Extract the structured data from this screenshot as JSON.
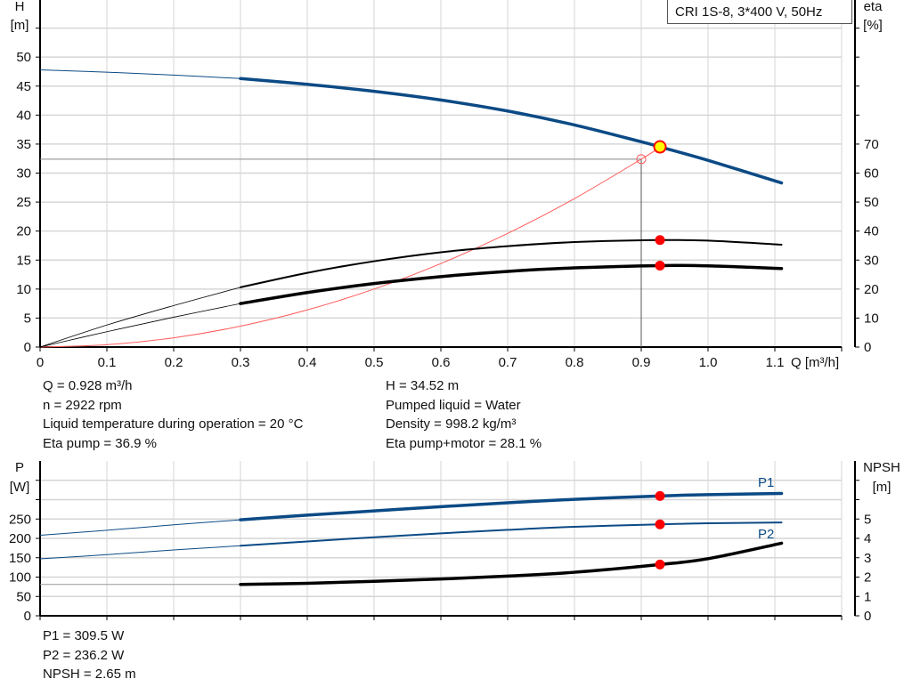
{
  "title_box": "CRI 1S-8, 3*400 V, 50Hz",
  "colors": {
    "pump_curve": "#0b4a85",
    "efficiency": "#000000",
    "system_curve": "#ff5a5a",
    "duty_point": "#ffff00",
    "marker": "#ff0000",
    "grid": "#d6d6d6"
  },
  "chart_data": [
    {
      "type": "line",
      "x_axis": {
        "label": "Q [m³/h]",
        "range": [
          0,
          1.2
        ],
        "ticks": [
          "0",
          "0.1",
          "0.2",
          "0.3",
          "0.4",
          "0.5",
          "0.6",
          "0.7",
          "0.8",
          "0.9",
          "1.0",
          "1.1"
        ]
      },
      "y_axis_left": {
        "label_1": "H",
        "label_2": "[m]",
        "range": [
          0,
          60
        ],
        "ticks": [
          "0",
          "5",
          "10",
          "15",
          "20",
          "25",
          "30",
          "35",
          "40",
          "45",
          "50"
        ]
      },
      "y_axis_right": {
        "label_1": "eta",
        "label_2": "[%]",
        "range": [
          0,
          120
        ],
        "ticks": [
          "0",
          "10",
          "20",
          "30",
          "40",
          "50",
          "60",
          "70"
        ]
      },
      "grid": true,
      "series": [
        {
          "key": "H",
          "axis": "left",
          "x": [
            0,
            0.1,
            0.2,
            0.3,
            0.4,
            0.5,
            0.6,
            0.7,
            0.8,
            0.9,
            0.928,
            1.0,
            1.11
          ],
          "y": [
            47.8,
            47.4,
            46.9,
            46.3,
            45.3,
            44.1,
            42.6,
            40.7,
            38.3,
            35.4,
            34.52,
            32.2,
            28.3
          ]
        },
        {
          "key": "eta_pump",
          "axis": "right",
          "x": [
            0,
            0.1,
            0.2,
            0.3,
            0.4,
            0.5,
            0.6,
            0.7,
            0.8,
            0.928,
            1.0,
            1.11
          ],
          "y": [
            0,
            7.6,
            14.3,
            20.6,
            25.6,
            29.6,
            32.7,
            34.8,
            36.2,
            36.9,
            36.7,
            35.3
          ]
        },
        {
          "key": "eta_pump_motor",
          "axis": "right",
          "x": [
            0,
            0.1,
            0.2,
            0.3,
            0.4,
            0.5,
            0.6,
            0.7,
            0.8,
            0.928,
            1.0,
            1.11
          ],
          "y": [
            0,
            5.3,
            10.3,
            15.0,
            18.8,
            21.9,
            24.3,
            26.1,
            27.3,
            28.1,
            28.0,
            27.1
          ]
        },
        {
          "key": "system",
          "axis": "left",
          "x": [
            0,
            0.1,
            0.2,
            0.3,
            0.4,
            0.5,
            0.6,
            0.7,
            0.8,
            0.9,
            0.928
          ],
          "y": [
            0,
            0.4,
            1.6,
            3.6,
            6.4,
            10.0,
            14.4,
            19.6,
            25.6,
            32.4,
            34.45
          ]
        }
      ],
      "requested_point": {
        "Q": 0.9,
        "H": 32.4
      },
      "duty_point": {
        "Q": 0.928,
        "H": 34.52,
        "eta_pump": 36.9,
        "eta_pump_motor": 28.1
      }
    },
    {
      "type": "line",
      "x_axis": {
        "range": [
          0,
          1.2
        ]
      },
      "y_axis_left": {
        "label_1": "P",
        "label_2": "[W]",
        "range": [
          0,
          400
        ],
        "ticks": [
          "0",
          "50",
          "100",
          "150",
          "200",
          "250"
        ]
      },
      "y_axis_right": {
        "label_1": "NPSH",
        "label_2": "[m]",
        "range": [
          0,
          8
        ],
        "ticks": [
          "0",
          "1",
          "2",
          "3",
          "4",
          "5"
        ]
      },
      "grid": true,
      "series": [
        {
          "key": "P1",
          "name": "P1",
          "axis": "left",
          "x": [
            0,
            0.1,
            0.2,
            0.3,
            0.4,
            0.5,
            0.6,
            0.7,
            0.8,
            0.928,
            1.0,
            1.11
          ],
          "y": [
            208,
            221,
            235,
            248,
            260,
            271,
            282,
            292,
            301,
            309.5,
            313,
            316
          ]
        },
        {
          "key": "P2",
          "name": "P2",
          "axis": "left",
          "x": [
            0,
            0.1,
            0.2,
            0.3,
            0.4,
            0.5,
            0.6,
            0.7,
            0.8,
            0.928,
            1.0,
            1.11
          ],
          "y": [
            147,
            158,
            170,
            181,
            192,
            203,
            213,
            222,
            230,
            236.2,
            239,
            241
          ]
        },
        {
          "key": "NPSH",
          "axis": "right",
          "x": [
            0,
            0.3,
            0.4,
            0.5,
            0.6,
            0.7,
            0.8,
            0.928,
            1.0,
            1.11
          ],
          "y": [
            1.62,
            1.62,
            1.68,
            1.78,
            1.9,
            2.05,
            2.25,
            2.65,
            2.95,
            3.75
          ]
        }
      ],
      "duty_point": {
        "Q": 0.928,
        "P1": 309.5,
        "P2": 236.2,
        "NPSH": 2.65
      }
    }
  ],
  "info_top": {
    "left": [
      "Q = 0.928 m³/h",
      "n = 2922 rpm",
      "Liquid temperature during operation = 20 °C",
      "Eta pump = 36.9 %"
    ],
    "right": [
      "H = 34.52 m",
      "Pumped liquid = Water",
      "Density = 998.2 kg/m³",
      "Eta pump+motor = 28.1 %"
    ]
  },
  "info_bottom": [
    "P1 = 309.5 W",
    "P2 = 236.2 W",
    "NPSH = 2.65 m"
  ]
}
